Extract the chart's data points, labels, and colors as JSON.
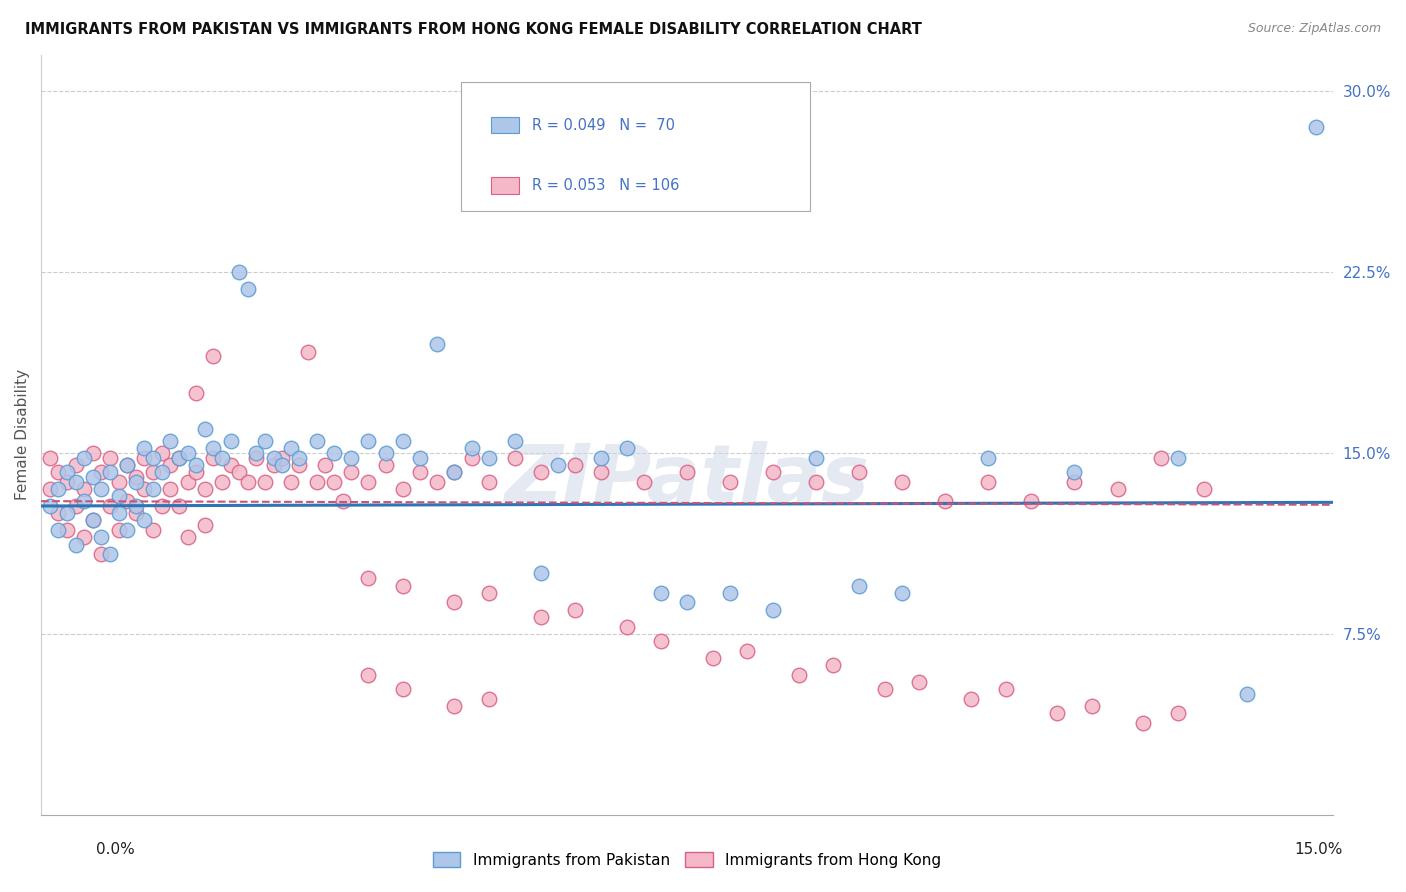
{
  "title": "IMMIGRANTS FROM PAKISTAN VS IMMIGRANTS FROM HONG KONG FEMALE DISABILITY CORRELATION CHART",
  "source": "Source: ZipAtlas.com",
  "ylabel": "Female Disability",
  "ytick_labels": [
    "7.5%",
    "15.0%",
    "22.5%",
    "30.0%"
  ],
  "ytick_values": [
    0.075,
    0.15,
    0.225,
    0.3
  ],
  "xmin": 0.0,
  "xmax": 0.15,
  "ymin": 0.0,
  "ymax": 0.315,
  "pakistan_color": "#aec6e8",
  "pakistan_edge_color": "#5b9bd5",
  "hong_kong_color": "#f4b8c8",
  "hong_kong_edge_color": "#d96085",
  "trend_pakistan_color": "#2e75b6",
  "trend_hong_kong_color": "#c9547a",
  "watermark": "ZIPatlas",
  "bottom_legend_pakistan": "Immigrants from Pakistan",
  "bottom_legend_hong_kong": "Immigrants from Hong Kong",
  "pakistan_x": [
    0.001,
    0.002,
    0.002,
    0.003,
    0.003,
    0.004,
    0.004,
    0.005,
    0.005,
    0.006,
    0.006,
    0.007,
    0.007,
    0.008,
    0.008,
    0.009,
    0.009,
    0.01,
    0.01,
    0.011,
    0.011,
    0.012,
    0.012,
    0.013,
    0.013,
    0.014,
    0.015,
    0.016,
    0.017,
    0.018,
    0.019,
    0.02,
    0.021,
    0.022,
    0.023,
    0.024,
    0.025,
    0.026,
    0.027,
    0.028,
    0.029,
    0.03,
    0.032,
    0.034,
    0.036,
    0.038,
    0.04,
    0.042,
    0.044,
    0.046,
    0.048,
    0.05,
    0.052,
    0.055,
    0.058,
    0.06,
    0.065,
    0.068,
    0.072,
    0.075,
    0.08,
    0.085,
    0.09,
    0.095,
    0.1,
    0.11,
    0.12,
    0.132,
    0.14,
    0.148
  ],
  "pakistan_y": [
    0.128,
    0.135,
    0.118,
    0.142,
    0.125,
    0.138,
    0.112,
    0.13,
    0.148,
    0.122,
    0.14,
    0.115,
    0.135,
    0.108,
    0.142,
    0.125,
    0.132,
    0.118,
    0.145,
    0.128,
    0.138,
    0.122,
    0.152,
    0.135,
    0.148,
    0.142,
    0.155,
    0.148,
    0.15,
    0.145,
    0.16,
    0.152,
    0.148,
    0.155,
    0.225,
    0.218,
    0.15,
    0.155,
    0.148,
    0.145,
    0.152,
    0.148,
    0.155,
    0.15,
    0.148,
    0.155,
    0.15,
    0.155,
    0.148,
    0.195,
    0.142,
    0.152,
    0.148,
    0.155,
    0.1,
    0.145,
    0.148,
    0.152,
    0.092,
    0.088,
    0.092,
    0.085,
    0.148,
    0.095,
    0.092,
    0.148,
    0.142,
    0.148,
    0.05,
    0.285
  ],
  "hong_kong_x": [
    0.001,
    0.001,
    0.002,
    0.002,
    0.003,
    0.003,
    0.004,
    0.004,
    0.005,
    0.005,
    0.006,
    0.006,
    0.007,
    0.007,
    0.008,
    0.008,
    0.009,
    0.009,
    0.01,
    0.01,
    0.011,
    0.011,
    0.012,
    0.012,
    0.013,
    0.013,
    0.014,
    0.014,
    0.015,
    0.015,
    0.016,
    0.016,
    0.017,
    0.017,
    0.018,
    0.018,
    0.019,
    0.019,
    0.02,
    0.02,
    0.021,
    0.022,
    0.023,
    0.024,
    0.025,
    0.026,
    0.027,
    0.028,
    0.029,
    0.03,
    0.031,
    0.032,
    0.033,
    0.034,
    0.035,
    0.036,
    0.038,
    0.04,
    0.042,
    0.044,
    0.046,
    0.048,
    0.05,
    0.052,
    0.055,
    0.058,
    0.062,
    0.065,
    0.07,
    0.075,
    0.08,
    0.085,
    0.09,
    0.095,
    0.1,
    0.105,
    0.11,
    0.115,
    0.12,
    0.125,
    0.13,
    0.135,
    0.038,
    0.042,
    0.048,
    0.052,
    0.058,
    0.062,
    0.068,
    0.072,
    0.078,
    0.082,
    0.088,
    0.092,
    0.098,
    0.102,
    0.108,
    0.112,
    0.118,
    0.122,
    0.128,
    0.132,
    0.038,
    0.042,
    0.048,
    0.052
  ],
  "hong_kong_y": [
    0.148,
    0.135,
    0.142,
    0.125,
    0.138,
    0.118,
    0.145,
    0.128,
    0.135,
    0.115,
    0.15,
    0.122,
    0.142,
    0.108,
    0.148,
    0.128,
    0.138,
    0.118,
    0.145,
    0.13,
    0.14,
    0.125,
    0.148,
    0.135,
    0.142,
    0.118,
    0.15,
    0.128,
    0.145,
    0.135,
    0.148,
    0.128,
    0.138,
    0.115,
    0.142,
    0.175,
    0.135,
    0.12,
    0.148,
    0.19,
    0.138,
    0.145,
    0.142,
    0.138,
    0.148,
    0.138,
    0.145,
    0.148,
    0.138,
    0.145,
    0.192,
    0.138,
    0.145,
    0.138,
    0.13,
    0.142,
    0.138,
    0.145,
    0.135,
    0.142,
    0.138,
    0.142,
    0.148,
    0.138,
    0.148,
    0.142,
    0.145,
    0.142,
    0.138,
    0.142,
    0.138,
    0.142,
    0.138,
    0.142,
    0.138,
    0.13,
    0.138,
    0.13,
    0.138,
    0.135,
    0.148,
    0.135,
    0.098,
    0.095,
    0.088,
    0.092,
    0.082,
    0.085,
    0.078,
    0.072,
    0.065,
    0.068,
    0.058,
    0.062,
    0.052,
    0.055,
    0.048,
    0.052,
    0.042,
    0.045,
    0.038,
    0.042,
    0.058,
    0.052,
    0.045,
    0.048
  ]
}
